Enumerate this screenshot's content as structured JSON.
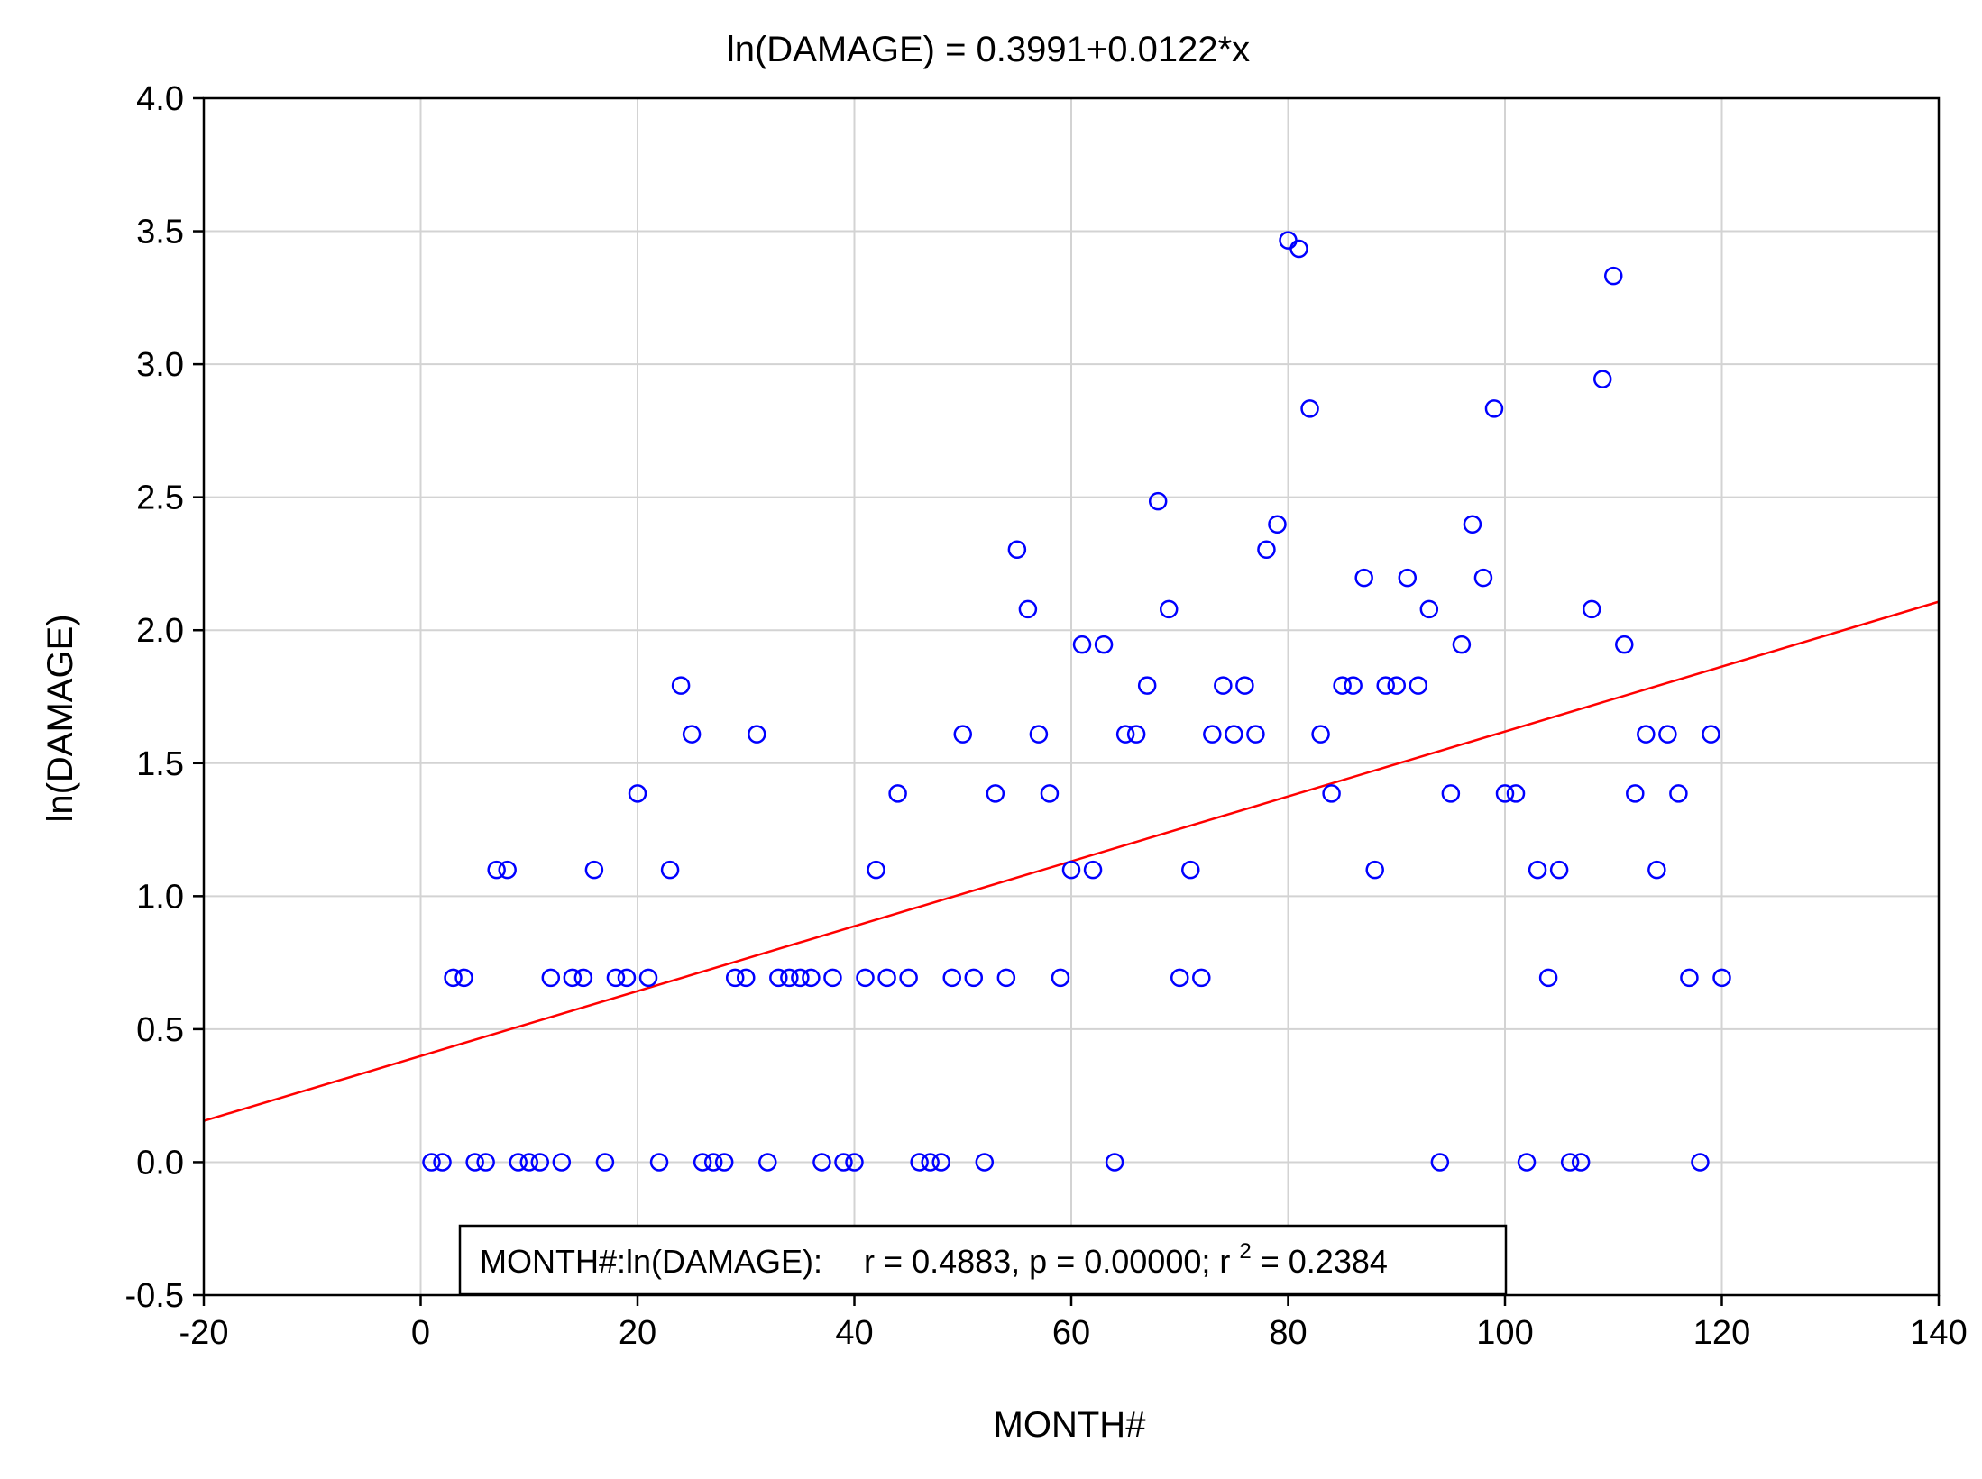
{
  "chart_data": {
    "type": "scatter",
    "title": "ln(DAMAGE) = 0.3991+0.0122*x",
    "xlabel": "MONTH#",
    "ylabel": "ln(DAMAGE)",
    "xlim": [
      -20,
      140
    ],
    "ylim": [
      -0.5,
      4.0
    ],
    "xticks": [
      -20,
      0,
      20,
      40,
      60,
      80,
      100,
      120,
      140
    ],
    "yticks": [
      -0.5,
      0.0,
      0.5,
      1.0,
      1.5,
      2.0,
      2.5,
      3.0,
      3.5,
      4.0
    ],
    "xtick_labels": [
      "-20",
      "0",
      "20",
      "40",
      "60",
      "80",
      "100",
      "120",
      "140"
    ],
    "ytick_labels": [
      "-0.5",
      "0.0",
      "0.5",
      "1.0",
      "1.5",
      "2.0",
      "2.5",
      "3.0",
      "3.5",
      "4.0"
    ],
    "grid": true,
    "regression": {
      "intercept": 0.3991,
      "slope": 0.0122
    },
    "stats": {
      "prefix": "MONTH#:ln(DAMAGE):",
      "r_text": "r = 0.4883, p = 0.00000; r",
      "sup": "2",
      "r2_text": " = 0.2384"
    },
    "colors": {
      "points": "#0000ff",
      "line": "#ff0000",
      "grid": "#d3d3d3",
      "axes": "#000000"
    },
    "points": [
      [
        1,
        0
      ],
      [
        2,
        0
      ],
      [
        3,
        0.693
      ],
      [
        4,
        0.693
      ],
      [
        5,
        0
      ],
      [
        6,
        0
      ],
      [
        7,
        1.099
      ],
      [
        8,
        1.099
      ],
      [
        9,
        0
      ],
      [
        10,
        0
      ],
      [
        11,
        0
      ],
      [
        12,
        0.693
      ],
      [
        13,
        0
      ],
      [
        14,
        0.693
      ],
      [
        15,
        0.693
      ],
      [
        16,
        1.099
      ],
      [
        17,
        0
      ],
      [
        18,
        0.693
      ],
      [
        19,
        0.693
      ],
      [
        20,
        1.386
      ],
      [
        21,
        0.693
      ],
      [
        22,
        0
      ],
      [
        23,
        1.099
      ],
      [
        24,
        1.792
      ],
      [
        25,
        1.609
      ],
      [
        26,
        0
      ],
      [
        27,
        0
      ],
      [
        28,
        0
      ],
      [
        29,
        0.693
      ],
      [
        30,
        0.693
      ],
      [
        31,
        1.609
      ],
      [
        32,
        0
      ],
      [
        33,
        0.693
      ],
      [
        34,
        0.693
      ],
      [
        35,
        0.693
      ],
      [
        36,
        0.693
      ],
      [
        37,
        0
      ],
      [
        38,
        0.693
      ],
      [
        39,
        0
      ],
      [
        40,
        0
      ],
      [
        41,
        0.693
      ],
      [
        42,
        1.099
      ],
      [
        43,
        0.693
      ],
      [
        44,
        1.386
      ],
      [
        45,
        0.693
      ],
      [
        46,
        0
      ],
      [
        47,
        0
      ],
      [
        48,
        0
      ],
      [
        49,
        0.693
      ],
      [
        50,
        1.609
      ],
      [
        51,
        0.693
      ],
      [
        52,
        0
      ],
      [
        53,
        1.386
      ],
      [
        54,
        0.693
      ],
      [
        55,
        2.303
      ],
      [
        56,
        2.079
      ],
      [
        57,
        1.609
      ],
      [
        58,
        1.386
      ],
      [
        59,
        0.693
      ],
      [
        60,
        1.099
      ],
      [
        61,
        1.946
      ],
      [
        62,
        1.099
      ],
      [
        63,
        1.946
      ],
      [
        64,
        0
      ],
      [
        65,
        1.609
      ],
      [
        66,
        1.609
      ],
      [
        67,
        1.792
      ],
      [
        68,
        2.485
      ],
      [
        69,
        2.079
      ],
      [
        70,
        0.693
      ],
      [
        71,
        1.099
      ],
      [
        72,
        0.693
      ],
      [
        73,
        1.609
      ],
      [
        74,
        1.792
      ],
      [
        75,
        1.609
      ],
      [
        76,
        1.792
      ],
      [
        77,
        1.609
      ],
      [
        78,
        2.303
      ],
      [
        79,
        2.398
      ],
      [
        80,
        3.466
      ],
      [
        81,
        3.434
      ],
      [
        82,
        2.833
      ],
      [
        83,
        1.609
      ],
      [
        84,
        1.386
      ],
      [
        85,
        1.792
      ],
      [
        86,
        1.792
      ],
      [
        87,
        2.197
      ],
      [
        88,
        1.099
      ],
      [
        89,
        1.792
      ],
      [
        90,
        1.792
      ],
      [
        91,
        2.197
      ],
      [
        92,
        1.792
      ],
      [
        93,
        2.079
      ],
      [
        94,
        0
      ],
      [
        95,
        1.386
      ],
      [
        96,
        1.946
      ],
      [
        97,
        2.398
      ],
      [
        98,
        2.197
      ],
      [
        99,
        2.833
      ],
      [
        100,
        1.386
      ],
      [
        101,
        1.386
      ],
      [
        102,
        0
      ],
      [
        103,
        1.099
      ],
      [
        104,
        0.693
      ],
      [
        105,
        1.099
      ],
      [
        106,
        0
      ],
      [
        107,
        0
      ],
      [
        108,
        2.079
      ],
      [
        109,
        2.944
      ],
      [
        110,
        3.332
      ],
      [
        111,
        1.946
      ],
      [
        112,
        1.386
      ],
      [
        113,
        1.609
      ],
      [
        114,
        1.099
      ],
      [
        115,
        1.609
      ],
      [
        116,
        1.386
      ],
      [
        117,
        0.693
      ],
      [
        118,
        0
      ],
      [
        119,
        1.609
      ],
      [
        120,
        0.693
      ]
    ]
  }
}
